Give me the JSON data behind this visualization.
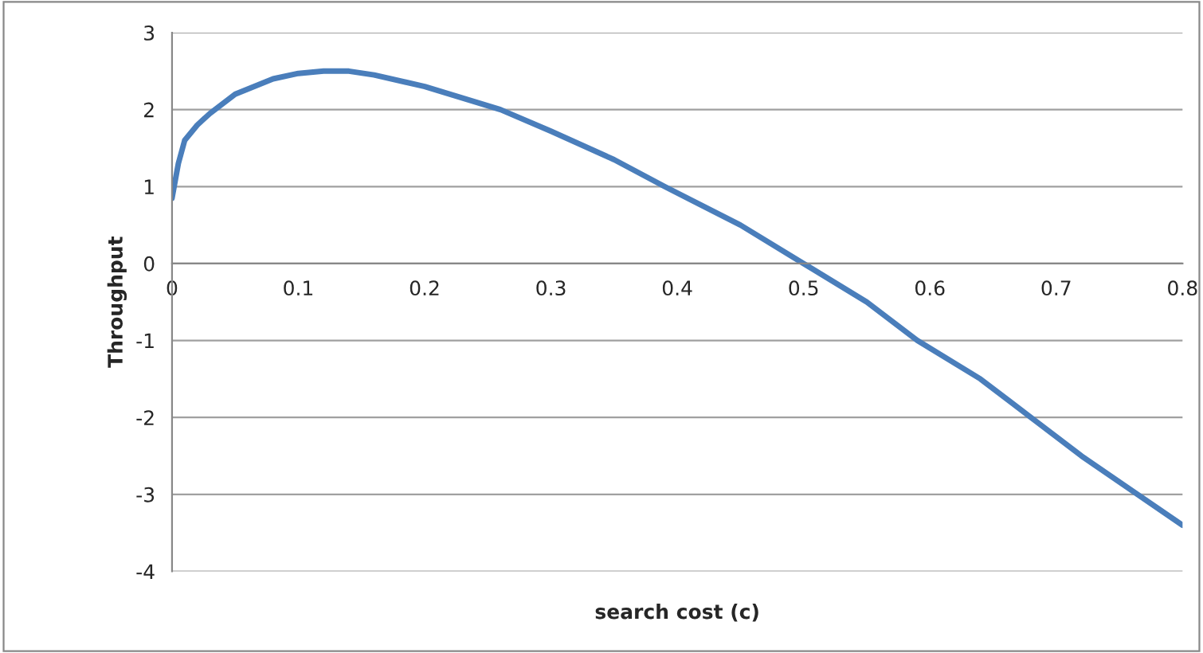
{
  "chart_data": {
    "type": "line",
    "xlabel": "search cost (c)",
    "ylabel": "Throughput",
    "x": [
      0,
      0.005,
      0.01,
      0.02,
      0.03,
      0.05,
      0.08,
      0.1,
      0.12,
      0.14,
      0.16,
      0.2,
      0.26,
      0.3,
      0.35,
      0.39,
      0.45,
      0.5,
      0.55,
      0.59,
      0.64,
      0.68,
      0.72,
      0.76,
      0.8
    ],
    "series": [
      {
        "color": "#4a7ebb",
        "values": [
          0.85,
          1.3,
          1.6,
          1.8,
          1.95,
          2.2,
          2.4,
          2.47,
          2.5,
          2.5,
          2.45,
          2.3,
          2.0,
          1.72,
          1.35,
          1.0,
          0.5,
          0.0,
          -0.5,
          -1.0,
          -1.5,
          -2.0,
          -2.5,
          -2.95,
          -3.4
        ]
      }
    ],
    "xlim": [
      0,
      0.8
    ],
    "xticks": [
      {
        "value": 0,
        "label": "0"
      },
      0.1,
      0.2,
      0.3,
      0.4,
      0.5,
      0.6,
      0.7,
      0.8
    ],
    "ylim": [
      -4,
      3
    ],
    "yticks": [
      -4,
      -3,
      -2,
      -1,
      0,
      1,
      2,
      3
    ],
    "grid": "y",
    "marker": "none",
    "line_style": "solid"
  }
}
